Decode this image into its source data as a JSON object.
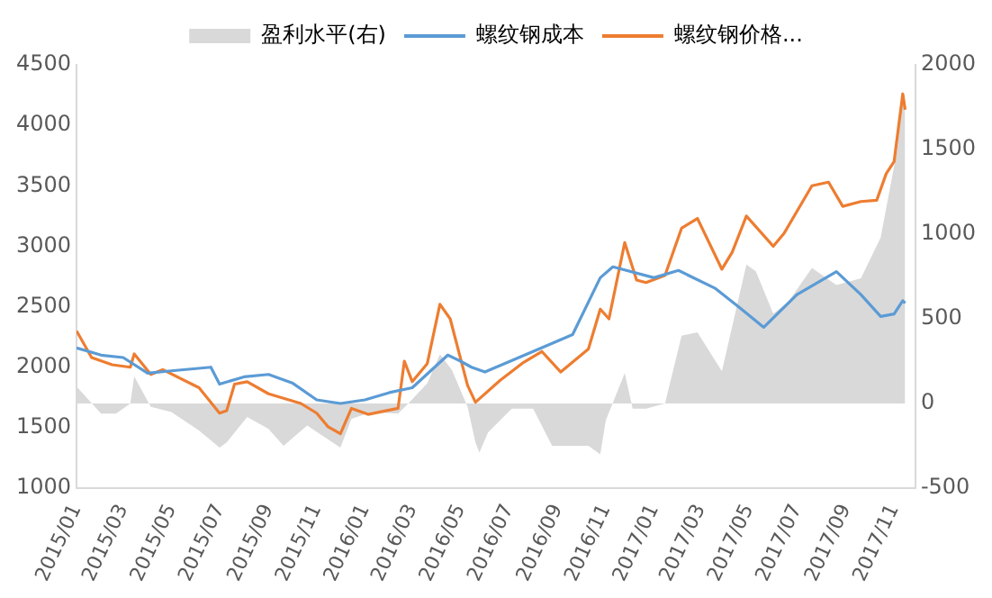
{
  "chart_data": {
    "type": "line",
    "legend": "top",
    "grid": false,
    "marker": "none",
    "line_style": "solid",
    "xlim": [
      "2015-01",
      "2017-11-28"
    ],
    "xticks": [
      {
        "value": "2015-01",
        "label": "2015/01"
      },
      {
        "value": "2015-03",
        "label": "2015/03"
      },
      {
        "value": "2015-05",
        "label": "2015/05"
      },
      {
        "value": "2015-07",
        "label": "2015/07"
      },
      {
        "value": "2015-09",
        "label": "2015/09"
      },
      {
        "value": "2015-11",
        "label": "2015/11"
      },
      {
        "value": "2016-01",
        "label": "2016/01"
      },
      {
        "value": "2016-03",
        "label": "2016/03"
      },
      {
        "value": "2016-05",
        "label": "2016/05"
      },
      {
        "value": "2016-07",
        "label": "2016/07"
      },
      {
        "value": "2016-09",
        "label": "2016/09"
      },
      {
        "value": "2016-11",
        "label": "2016/11"
      },
      {
        "value": "2017-01",
        "label": "2017/01"
      },
      {
        "value": "2017-03",
        "label": "2017/03"
      },
      {
        "value": "2017-05",
        "label": "2017/05"
      },
      {
        "value": "2017-07",
        "label": "2017/07"
      },
      {
        "value": "2017-09",
        "label": "2017/09"
      },
      {
        "value": "2017-11",
        "label": "2017/11"
      }
    ],
    "ylim": [
      1000,
      4500
    ],
    "yticks": [
      1000,
      1500,
      2000,
      2500,
      3000,
      3500,
      4000,
      4500
    ],
    "y2lim": [
      -500,
      2000
    ],
    "y2ticks": [
      -500,
      0,
      500,
      1000,
      1500,
      2000
    ],
    "series": [
      {
        "name": "盈利水平(右)",
        "type": "area",
        "axis": "y2",
        "color": "#d9d9d9",
        "x": [
          "2015-01-01",
          "2015-02-01",
          "2015-02-20",
          "2015-03-10",
          "2015-03-15",
          "2015-04-05",
          "2015-05-01",
          "2015-06-05",
          "2015-07-01",
          "2015-07-10",
          "2015-08-05",
          "2015-09-01",
          "2015-09-20",
          "2015-10-20",
          "2015-12-01",
          "2015-12-15",
          "2016-01-10",
          "2016-02-12",
          "2016-02-25",
          "2016-03-20",
          "2016-04-05",
          "2016-04-20",
          "2016-05-10",
          "2016-05-20",
          "2016-05-25",
          "2016-06-05",
          "2016-07-05",
          "2016-08-01",
          "2016-08-25",
          "2016-10-10",
          "2016-10-25",
          "2016-11-01",
          "2016-11-25",
          "2016-12-05",
          "2016-12-22",
          "2017-01-15",
          "2017-02-05",
          "2017-02-25",
          "2017-03-28",
          "2017-04-28",
          "2017-05-10",
          "2017-06-01",
          "2017-06-20",
          "2017-07-20",
          "2017-08-20",
          "2017-09-20",
          "2017-10-15",
          "2017-11-05",
          "2017-11-12",
          "2017-11-15"
        ],
        "values": [
          100,
          -60,
          -60,
          0,
          160,
          -20,
          -50,
          -160,
          -260,
          -230,
          -80,
          -150,
          -250,
          -130,
          -260,
          -90,
          -50,
          -60,
          0,
          120,
          290,
          200,
          -20,
          -230,
          -290,
          -170,
          -30,
          -30,
          -250,
          -250,
          -300,
          -100,
          180,
          -30,
          -30,
          0,
          400,
          420,
          190,
          820,
          780,
          530,
          600,
          800,
          700,
          740,
          980,
          1500,
          1800,
          1750
        ]
      },
      {
        "name": "螺纹钢成本",
        "type": "line",
        "color": "#5b9bd5",
        "x": [
          "2015-01-01",
          "2015-02-01",
          "2015-03-01",
          "2015-04-01",
          "2015-05-01",
          "2015-06-20",
          "2015-07-01",
          "2015-08-01",
          "2015-09-01",
          "2015-10-01",
          "2015-11-01",
          "2015-12-01",
          "2016-01-01",
          "2016-02-01",
          "2016-03-01",
          "2016-04-15",
          "2016-05-01",
          "2016-05-15",
          "2016-06-01",
          "2016-08-01",
          "2016-09-20",
          "2016-10-25",
          "2016-11-10",
          "2017-01-01",
          "2017-02-01",
          "2017-03-20",
          "2017-04-20",
          "2017-05-20",
          "2017-07-01",
          "2017-08-20",
          "2017-09-20",
          "2017-10-15",
          "2017-11-01",
          "2017-11-12",
          "2017-11-15"
        ],
        "values": [
          2160,
          2100,
          2080,
          1950,
          1970,
          2000,
          1860,
          1920,
          1940,
          1870,
          1730,
          1700,
          1730,
          1790,
          1830,
          2100,
          2050,
          2000,
          1960,
          2130,
          2270,
          2740,
          2830,
          2740,
          2800,
          2650,
          2490,
          2330,
          2600,
          2790,
          2600,
          2420,
          2440,
          2550,
          2530
        ]
      },
      {
        "name": "螺纹钢价格...",
        "type": "line",
        "color": "#ed7d31",
        "x": [
          "2015-01-01",
          "2015-01-20",
          "2015-02-15",
          "2015-03-10",
          "2015-03-15",
          "2015-04-05",
          "2015-04-20",
          "2015-06-05",
          "2015-07-01",
          "2015-07-10",
          "2015-07-20",
          "2015-08-05",
          "2015-09-01",
          "2015-10-12",
          "2015-11-01",
          "2015-11-15",
          "2015-12-01",
          "2015-12-15",
          "2016-01-05",
          "2016-02-12",
          "2016-02-20",
          "2016-03-01",
          "2016-03-20",
          "2016-04-05",
          "2016-04-18",
          "2016-05-10",
          "2016-05-20",
          "2016-06-20",
          "2016-07-20",
          "2016-08-12",
          "2016-09-05",
          "2016-10-10",
          "2016-10-25",
          "2016-11-05",
          "2016-11-25",
          "2016-12-10",
          "2016-12-22",
          "2017-01-15",
          "2017-02-05",
          "2017-02-25",
          "2017-03-28",
          "2017-04-10",
          "2017-04-28",
          "2017-06-01",
          "2017-06-15",
          "2017-07-20",
          "2017-08-10",
          "2017-08-28",
          "2017-09-20",
          "2017-10-10",
          "2017-10-22",
          "2017-11-01",
          "2017-11-12",
          "2017-11-15"
        ],
        "values": [
          2300,
          2080,
          2020,
          2000,
          2110,
          1940,
          1980,
          1830,
          1620,
          1640,
          1860,
          1880,
          1780,
          1700,
          1620,
          1510,
          1450,
          1660,
          1610,
          1660,
          2050,
          1880,
          2030,
          2520,
          2400,
          1850,
          1710,
          1890,
          2040,
          2130,
          1960,
          2150,
          2480,
          2400,
          3030,
          2720,
          2700,
          2760,
          3150,
          3230,
          2810,
          2950,
          3250,
          3000,
          3110,
          3500,
          3530,
          3330,
          3370,
          3380,
          3600,
          3700,
          4260,
          4130
        ]
      }
    ]
  }
}
